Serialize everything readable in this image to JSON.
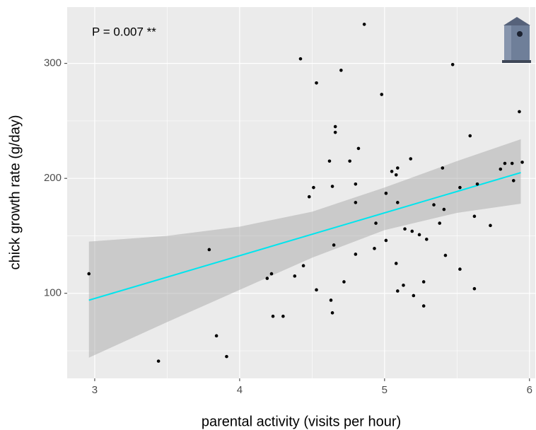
{
  "chart_data": {
    "type": "scatter",
    "annotation": "P = 0.007 **",
    "x_label": "parental activity (visits per hour)",
    "y_label": "chick growth rate (g/day)",
    "x": [
      2.96,
      3.44,
      3.79,
      3.84,
      3.91,
      4.19,
      4.22,
      4.23,
      4.3,
      4.38,
      4.42,
      4.44,
      4.48,
      4.51,
      4.53,
      4.53,
      4.62,
      4.63,
      4.64,
      4.64,
      4.65,
      4.66,
      4.66,
      4.7,
      4.72,
      4.76,
      4.8,
      4.8,
      4.8,
      4.82,
      4.86,
      4.93,
      4.94,
      4.98,
      5.01,
      5.01,
      5.05,
      5.08,
      5.08,
      5.09,
      5.09,
      5.09,
      5.13,
      5.14,
      5.18,
      5.19,
      5.2,
      5.24,
      5.27,
      5.27,
      5.29,
      5.34,
      5.38,
      5.4,
      5.41,
      5.42,
      5.47,
      5.52,
      5.52,
      5.59,
      5.62,
      5.62,
      5.64,
      5.73,
      5.8,
      5.83,
      5.88,
      5.89,
      5.93,
      5.95
    ],
    "values": [
      117,
      41,
      138,
      63,
      45,
      113,
      117,
      80,
      80,
      115,
      304,
      124,
      184,
      192,
      283,
      103,
      215,
      94,
      83,
      193,
      142,
      245,
      240,
      294,
      110,
      215,
      179,
      134,
      195,
      226,
      334,
      139,
      161,
      273,
      187,
      146,
      206,
      203,
      126,
      209,
      102,
      179,
      107,
      156,
      217,
      154,
      98,
      151,
      110,
      89,
      147,
      177,
      161,
      209,
      173,
      133,
      299,
      121,
      192,
      237,
      167,
      104,
      195,
      159,
      208,
      213,
      213,
      198,
      258,
      214
    ],
    "color": "#000000",
    "fit_line": {
      "x": [
        2.96,
        5.94
      ],
      "values": [
        94,
        205
      ],
      "color": "#00e5ee"
    },
    "confidence_band": {
      "x": [
        2.96,
        3.5,
        4.0,
        4.5,
        5.0,
        5.5,
        5.94
      ],
      "lower": [
        44,
        75,
        103,
        131,
        155,
        170,
        178
      ],
      "upper": [
        145,
        150,
        158,
        171,
        192,
        215,
        234
      ],
      "color": "#999999"
    },
    "xlim": [
      2.81,
      6.04
    ],
    "ylim": [
      26,
      349
    ],
    "xticks": [
      3,
      4,
      5,
      6
    ],
    "yticks": [
      100,
      200,
      300
    ],
    "x_minor_grid": [
      3.5,
      4.5,
      5.5
    ],
    "y_minor_grid": [
      50,
      150,
      250
    ],
    "grid": true
  }
}
